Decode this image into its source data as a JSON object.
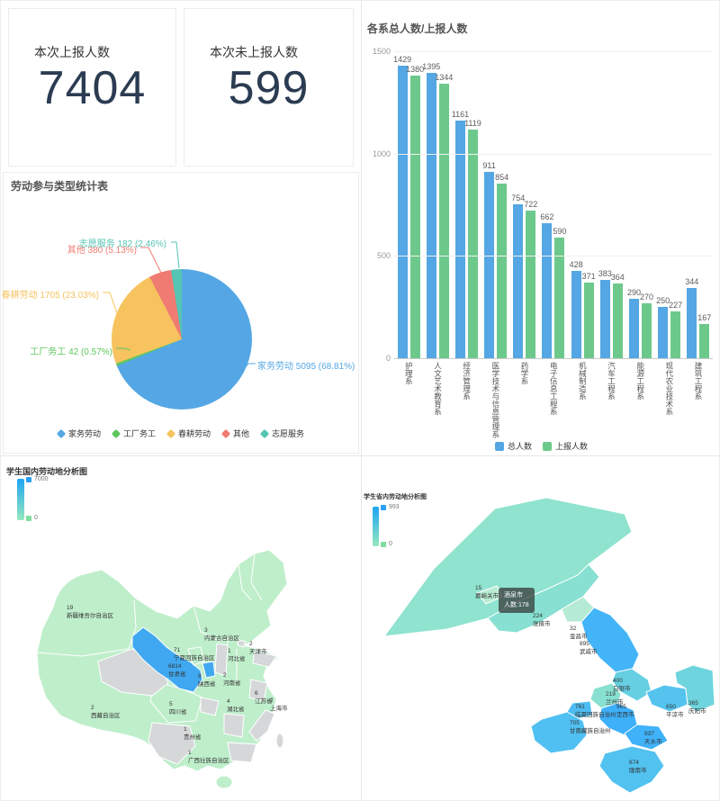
{
  "stats": {
    "reported": {
      "label": "本次上报人数",
      "value": "7404"
    },
    "unreported": {
      "label": "本次未上报人数",
      "value": "599"
    }
  },
  "colors": {
    "blue": "#54a7e4",
    "green": "#6cc98b",
    "orange": "#f6c35e",
    "red": "#ef7b72",
    "teal": "#54c4b3",
    "map_high_blue": "#3fa8f0",
    "map_low_green": "#bfeecb",
    "map_nodata": "#d5d7d9"
  },
  "chart_data": [
    {
      "id": "labor-type-pie",
      "type": "pie",
      "title": "劳动参与类型统计表",
      "slices": [
        {
          "name": "家务劳动",
          "value": 5095,
          "percent": "68.81",
          "color": "#54a7e4"
        },
        {
          "name": "工厂务工",
          "value": 42,
          "percent": "0.57",
          "color": "#5ec75e"
        },
        {
          "name": "春耕劳动",
          "value": 1705,
          "percent": "23.03",
          "color": "#f6c35e"
        },
        {
          "name": "其他",
          "value": 380,
          "percent": "5.13",
          "color": "#ef7b72"
        },
        {
          "name": "志愿服务",
          "value": 182,
          "percent": "2.46",
          "color": "#54c4b3"
        }
      ],
      "legend": [
        "家务劳动",
        "工厂务工",
        "春耕劳动",
        "其他",
        "志愿服务"
      ],
      "legend_position": "bottom"
    },
    {
      "id": "dept-bar",
      "type": "bar",
      "title": "各系总人数/上报人数",
      "categories": [
        "护理系",
        "人文艺术教育系",
        "经济管理系",
        "医学技术与信息管理系",
        "药学系",
        "电子信息工程系",
        "机械制造系",
        "汽车工程系",
        "能源工程系",
        "现代农业技术系",
        "建筑工程系"
      ],
      "series": [
        {
          "name": "总人数",
          "color": "#54a7e4",
          "values": [
            1429,
            1395,
            1161,
            911,
            754,
            662,
            428,
            383,
            290,
            250,
            344
          ]
        },
        {
          "name": "上报人数",
          "color": "#6cc98b",
          "values": [
            1380,
            1344,
            1119,
            854,
            722,
            590,
            371,
            364,
            270,
            227,
            167
          ]
        }
      ],
      "ylim": [
        0,
        1500
      ],
      "yticks": [
        1500,
        1000,
        500,
        0
      ],
      "grid": true,
      "legend_position": "bottom"
    },
    {
      "id": "china-map",
      "type": "map",
      "title": "学生国内劳动地分析图",
      "visualmap": {
        "max": "7000",
        "min": "0"
      },
      "labels": [
        {
          "value": "19",
          "name": "新疆维吾尔自治区",
          "x": 73,
          "y": 165
        },
        {
          "value": "2",
          "name": "西藏自治区",
          "x": 100,
          "y": 276
        },
        {
          "value": "5",
          "name": "四川省",
          "x": 187,
          "y": 272
        },
        {
          "value": "1",
          "name": "贵州省",
          "x": 203,
          "y": 300
        },
        {
          "value": "1",
          "name": "广西壮族自治区",
          "x": 208,
          "y": 326
        },
        {
          "value": "3",
          "name": "内蒙古自治区",
          "x": 226,
          "y": 190
        },
        {
          "value": "71",
          "name": "宁夏回族自治区",
          "x": 192,
          "y": 212
        },
        {
          "value": "6814",
          "name": "甘肃省",
          "x": 186,
          "y": 230
        },
        {
          "value": "9",
          "name": "陕西省",
          "x": 219,
          "y": 241
        },
        {
          "value": "2",
          "name": "天津市",
          "x": 276,
          "y": 205
        },
        {
          "value": "1",
          "name": "河北省",
          "x": 252,
          "y": 213
        },
        {
          "value": "2",
          "name": "河南省",
          "x": 247,
          "y": 240
        },
        {
          "value": "4",
          "name": "湖北省",
          "x": 251,
          "y": 269
        },
        {
          "value": "6",
          "name": "江苏省",
          "x": 282,
          "y": 260
        },
        {
          "value": "2",
          "name": "上海市",
          "x": 299,
          "y": 268
        }
      ]
    },
    {
      "id": "gansu-map",
      "type": "map",
      "title": "学生省内劳动地分析图",
      "visualmap": {
        "max": "993",
        "min": "0"
      },
      "tooltip": {
        "name": "酒泉市",
        "text": "人数:178"
      },
      "labels": [
        {
          "value": "15",
          "name": "嘉峪关市",
          "x": 126,
          "y": 143
        },
        {
          "value": "224",
          "name": "张掖市",
          "x": 190,
          "y": 174
        },
        {
          "value": "32",
          "name": "金昌市",
          "x": 231,
          "y": 188
        },
        {
          "value": "895",
          "name": "武威市",
          "x": 242,
          "y": 205
        },
        {
          "value": "400",
          "name": "白银市",
          "x": 279,
          "y": 246
        },
        {
          "value": "219",
          "name": "兰州市",
          "x": 271,
          "y": 261
        },
        {
          "value": "365",
          "name": "庆阳市",
          "x": 363,
          "y": 271
        },
        {
          "value": "650",
          "name": "平凉市",
          "x": 338,
          "y": 275
        },
        {
          "value": "761",
          "name": "临夏回族自治州",
          "x": 237,
          "y": 275
        },
        {
          "value": "965",
          "name": "定西市",
          "x": 283,
          "y": 275
        },
        {
          "value": "705",
          "name": "甘南藏族自治州",
          "x": 231,
          "y": 293
        },
        {
          "value": "937",
          "name": "天水市",
          "x": 314,
          "y": 305
        },
        {
          "value": "674",
          "name": "陇南市",
          "x": 297,
          "y": 337
        }
      ]
    }
  ]
}
